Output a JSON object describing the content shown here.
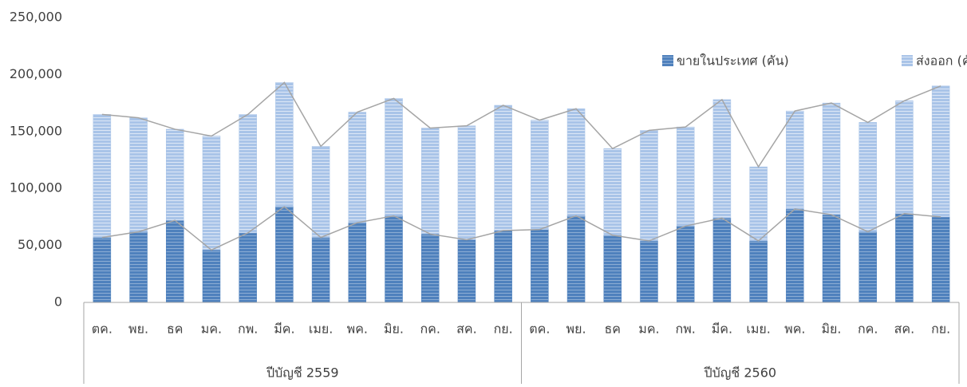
{
  "chart_data": {
    "type": "stacked-bar",
    "categories": [
      "ตค.",
      "พย.",
      "ธค",
      "มค.",
      "กพ.",
      "มีค.",
      "เมย.",
      "พค.",
      "มิย.",
      "กค.",
      "สค.",
      "กย.",
      "ตค.",
      "พย.",
      "ธค",
      "มค.",
      "กพ.",
      "มีค.",
      "เมย.",
      "พค.",
      "มิย.",
      "กค.",
      "สค.",
      "กย."
    ],
    "groups": [
      "ปีบัญชี 2559",
      "ปีบัญชี 2560"
    ],
    "series": [
      {
        "name": "ขายในประเทศ (คัน)",
        "color": "#4f81bd",
        "values": [
          57000,
          62000,
          72000,
          46000,
          61000,
          84000,
          57000,
          70000,
          76000,
          60000,
          55000,
          63000,
          64000,
          76000,
          59000,
          54000,
          67000,
          74000,
          54000,
          82000,
          77000,
          62000,
          78000,
          75000
        ]
      },
      {
        "name": "ส่งออก (คัน)",
        "color": "#a9c4e8",
        "values": [
          108000,
          100000,
          80000,
          100000,
          104000,
          109000,
          80000,
          97000,
          103000,
          93000,
          100000,
          110000,
          96000,
          94000,
          76000,
          97000,
          87000,
          104000,
          65000,
          86000,
          98000,
          96000,
          99000,
          115000
        ]
      }
    ],
    "ylim": [
      0,
      250000
    ],
    "yticks": [
      0,
      {
        "value": 50000,
        "label": "50,000"
      },
      {
        "value": 100000,
        "label": "100,000"
      },
      {
        "value": 150000,
        "label": "150,000"
      },
      {
        "value": 200000,
        "label": "200,000"
      },
      {
        "value": 250000,
        "label": "250,000"
      }
    ],
    "line_color": "#a5a5a5",
    "legend": "top-right"
  }
}
